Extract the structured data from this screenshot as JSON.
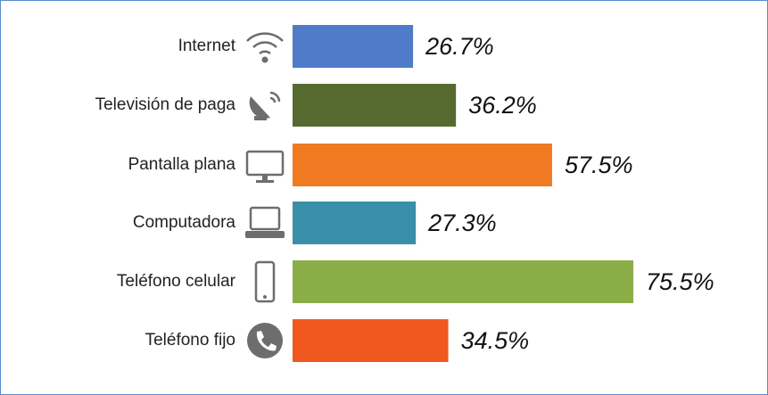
{
  "chart_data": {
    "type": "bar",
    "categories": [
      "Internet",
      "Televisión de paga",
      "Pantalla plana",
      "Computadora",
      "Teléfono celular",
      "Teléfono fijo"
    ],
    "values": [
      26.7,
      36.2,
      57.5,
      27.3,
      75.5,
      34.5
    ],
    "value_labels": [
      "26.7%",
      "36.2%",
      "57.5%",
      "27.3%",
      "75.5%",
      "34.5%"
    ],
    "colors": [
      "#4f7bc8",
      "#566a2f",
      "#f07a22",
      "#3a8fa8",
      "#8bad48",
      "#f0581f"
    ]
  }
}
